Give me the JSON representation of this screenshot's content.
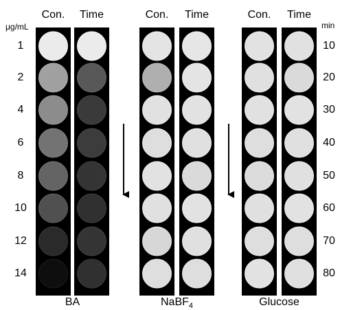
{
  "groups": [
    {
      "headers": [
        "Con.",
        "Time"
      ],
      "label": {
        "main": "BA"
      }
    },
    {
      "headers": [
        "Con.",
        "Time"
      ],
      "label": {
        "main": "NaBF",
        "sub": "4"
      }
    },
    {
      "headers": [
        "Con.",
        "Time"
      ],
      "label": {
        "main": "Glucose"
      }
    }
  ],
  "left_axis": {
    "unit": "μg/mL",
    "labels": [
      "1",
      "2",
      "4",
      "6",
      "8",
      "10",
      "12",
      "14"
    ]
  },
  "right_axis": {
    "unit": "min",
    "labels": [
      "10",
      "20",
      "30",
      "40",
      "50",
      "60",
      "70",
      "80"
    ]
  }
}
